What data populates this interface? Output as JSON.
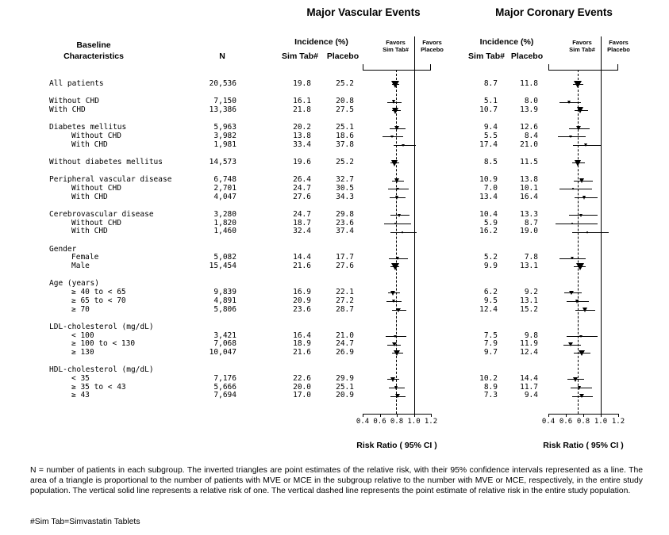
{
  "titles": {
    "left": "Major Vascular Events",
    "right": "Major Coronary Events"
  },
  "headers": {
    "baseline1": "Baseline",
    "baseline2": "Characteristics",
    "n": "N",
    "incidence": "Incidence (%)",
    "sim": "Sim Tab#",
    "placebo": "Placebo",
    "favors": "Favors",
    "favors_sim": "Sim Tab#",
    "favors_placebo": "Placebo"
  },
  "axis": {
    "ticks": [
      "0.4",
      "0.6",
      "0.8",
      "1.0",
      "1.2"
    ],
    "min": 0.4,
    "max": 1.2,
    "label": "Risk Ratio ( 95% CI )",
    "solid_line_at": 1.0,
    "dashed_mve": 0.79,
    "dashed_mce": 0.74
  },
  "footnotes": {
    "main": "N = number of patients in each subgroup. The inverted triangles are point estimates of the relative risk, with their 95% confidence intervals represented as a line. The area of a triangle is proportional to the number of patients with MVE or MCE in the subgroup relative to the number with MVE or MCE, respectively, in the entire study population. The vertical solid line represents a relative risk of one. The vertical dashed line represents the point estimate of relative risk in the entire study population.",
    "sim_tab": "#Sim Tab=Simvastatin Tablets"
  },
  "chart_data": {
    "type": "forest",
    "x_axis": {
      "label": "Risk Ratio ( 95% CI )",
      "range": [
        0.4,
        1.2
      ],
      "ticks": [
        0.4,
        0.6,
        0.8,
        1.0,
        1.2
      ]
    },
    "panels": [
      "Major Vascular Events",
      "Major Coronary Events"
    ],
    "row_legend": "t: d=data h=group-header s=spacer; ind=indent level; m1=MVE {s:Sim Tab incidence %, p:Placebo incidence %, rr:risk ratio point estimate, lo/hi:95% CI, w:triangle width px}; m2=MCE same fields",
    "rows": [
      {
        "t": "d",
        "label": "All patients",
        "ind": 0,
        "n": "20,536",
        "m1": {
          "s": "19.8",
          "p": "25.2",
          "rr": 0.79,
          "lo": 0.74,
          "hi": 0.83,
          "w": 11.0
        },
        "m2": {
          "s": "8.7",
          "p": "11.8",
          "rr": 0.74,
          "lo": 0.68,
          "hi": 0.8,
          "w": 11.0
        }
      },
      {
        "t": "s"
      },
      {
        "t": "d",
        "label": "Without CHD",
        "ind": 0,
        "n": "7,150",
        "m1": {
          "s": "16.1",
          "p": "20.8",
          "rr": 0.77,
          "lo": 0.69,
          "hi": 0.86,
          "w": 5.9
        },
        "m2": {
          "s": "5.1",
          "p": "8.0",
          "rr": 0.64,
          "lo": 0.53,
          "hi": 0.77,
          "w": 5.2
        }
      },
      {
        "t": "d",
        "label": "With CHD",
        "ind": 0,
        "n": "13,386",
        "m1": {
          "s": "21.8",
          "p": "27.5",
          "rr": 0.79,
          "lo": 0.74,
          "hi": 0.85,
          "w": 9.3
        },
        "m2": {
          "s": "10.7",
          "p": "13.9",
          "rr": 0.77,
          "lo": 0.7,
          "hi": 0.85,
          "w": 9.7
        }
      },
      {
        "t": "s"
      },
      {
        "t": "d",
        "label": "Diabetes mellitus",
        "ind": 0,
        "n": "5,963",
        "m1": {
          "s": "20.2",
          "p": "25.1",
          "rr": 0.8,
          "lo": 0.72,
          "hi": 0.9,
          "w": 6.0
        },
        "m2": {
          "s": "9.4",
          "p": "12.6",
          "rr": 0.75,
          "lo": 0.64,
          "hi": 0.87,
          "w": 6.1
        }
      },
      {
        "t": "d",
        "label": "Without CHD",
        "ind": 1,
        "n": "3,982",
        "m1": {
          "s": "13.8",
          "p": "18.6",
          "rr": 0.74,
          "lo": 0.63,
          "hi": 0.87,
          "w": 4.1
        },
        "m2": {
          "s": "5.5",
          "p": "8.4",
          "rr": 0.65,
          "lo": 0.51,
          "hi": 0.83,
          "w": 4.0
        }
      },
      {
        "t": "d",
        "label": "With CHD",
        "ind": 1,
        "n": "1,981",
        "m1": {
          "s": "33.4",
          "p": "37.8",
          "rr": 0.88,
          "lo": 0.76,
          "hi": 1.02,
          "w": 4.3
        },
        "m2": {
          "s": "17.4",
          "p": "21.0",
          "rr": 0.83,
          "lo": 0.68,
          "hi": 1.01,
          "w": 4.7
        }
      },
      {
        "t": "s"
      },
      {
        "t": "d",
        "label": "Without diabetes mellitus",
        "ind": 0,
        "n": "14,573",
        "m1": {
          "s": "19.6",
          "p": "25.2",
          "rr": 0.78,
          "lo": 0.73,
          "hi": 0.83,
          "w": 9.2
        },
        "m2": {
          "s": "8.5",
          "p": "11.5",
          "rr": 0.74,
          "lo": 0.67,
          "hi": 0.82,
          "w": 9.2
        }
      },
      {
        "t": "s"
      },
      {
        "t": "d",
        "label": "Peripheral vascular disease",
        "ind": 0,
        "n": "6,748",
        "m1": {
          "s": "26.4",
          "p": "32.7",
          "rr": 0.81,
          "lo": 0.74,
          "hi": 0.88,
          "w": 7.2
        },
        "m2": {
          "s": "10.9",
          "p": "13.8",
          "rr": 0.79,
          "lo": 0.69,
          "hi": 0.91,
          "w": 6.9
        }
      },
      {
        "t": "d",
        "label": "Without CHD",
        "ind": 1,
        "n": "2,701",
        "m1": {
          "s": "24.7",
          "p": "30.5",
          "rr": 0.81,
          "lo": 0.7,
          "hi": 0.94,
          "w": 4.4
        },
        "m2": {
          "s": "7.0",
          "p": "10.1",
          "rr": 0.69,
          "lo": 0.53,
          "hi": 0.9,
          "w": 3.6
        }
      },
      {
        "t": "d",
        "label": "With CHD",
        "ind": 1,
        "n": "4,047",
        "m1": {
          "s": "27.6",
          "p": "34.3",
          "rr": 0.81,
          "lo": 0.72,
          "hi": 0.9,
          "w": 5.7
        },
        "m2": {
          "s": "13.4",
          "p": "16.4",
          "rr": 0.82,
          "lo": 0.7,
          "hi": 0.96,
          "w": 5.9
        }
      },
      {
        "t": "s"
      },
      {
        "t": "d",
        "label": "Cerebrovascular disease",
        "ind": 0,
        "n": "3,280",
        "m1": {
          "s": "24.7",
          "p": "29.8",
          "rr": 0.83,
          "lo": 0.73,
          "hi": 0.95,
          "w": 4.8
        },
        "m2": {
          "s": "10.4",
          "p": "13.3",
          "rr": 0.78,
          "lo": 0.64,
          "hi": 0.96,
          "w": 4.7
        }
      },
      {
        "t": "d",
        "label": "Without CHD",
        "ind": 1,
        "n": "1,820",
        "m1": {
          "s": "18.7",
          "p": "23.6",
          "rr": 0.79,
          "lo": 0.65,
          "hi": 0.97,
          "w": 3.2
        },
        "m2": {
          "s": "5.9",
          "p": "8.7",
          "rr": 0.68,
          "lo": 0.48,
          "hi": 0.96,
          "w": 3.0
        }
      },
      {
        "t": "d",
        "label": "With CHD",
        "ind": 1,
        "n": "1,460",
        "m1": {
          "s": "32.4",
          "p": "37.4",
          "rr": 0.87,
          "lo": 0.73,
          "hi": 1.03,
          "w": 3.7
        },
        "m2": {
          "s": "16.2",
          "p": "19.0",
          "rr": 0.85,
          "lo": 0.67,
          "hi": 1.09,
          "w": 3.8
        }
      },
      {
        "t": "s"
      },
      {
        "t": "h",
        "label": "Gender",
        "ind": 0
      },
      {
        "t": "d",
        "label": "Female",
        "ind": 1,
        "n": "5,082",
        "m1": {
          "s": "14.4",
          "p": "17.7",
          "rr": 0.81,
          "lo": 0.71,
          "hi": 0.93,
          "w": 4.6
        },
        "m2": {
          "s": "5.2",
          "p": "7.8",
          "rr": 0.67,
          "lo": 0.53,
          "hi": 0.83,
          "w": 4.4
        }
      },
      {
        "t": "d",
        "label": "Male",
        "ind": 1,
        "n": "15,454",
        "m1": {
          "s": "21.6",
          "p": "27.6",
          "rr": 0.78,
          "lo": 0.73,
          "hi": 0.83,
          "w": 10.0
        },
        "m2": {
          "s": "9.9",
          "p": "13.1",
          "rr": 0.76,
          "lo": 0.69,
          "hi": 0.83,
          "w": 10.1
        }
      },
      {
        "t": "s"
      },
      {
        "t": "h",
        "label": "Age (years)",
        "ind": 0
      },
      {
        "t": "d",
        "label": "≥ 40 to < 65",
        "ind": 1,
        "n": "9,839",
        "m1": {
          "s": "16.9",
          "p": "22.1",
          "rr": 0.76,
          "lo": 0.7,
          "hi": 0.84,
          "w": 7.1
        },
        "m2": {
          "s": "6.2",
          "p": "9.2",
          "rr": 0.67,
          "lo": 0.58,
          "hi": 0.78,
          "w": 6.6
        }
      },
      {
        "t": "d",
        "label": "≥ 65 to < 70",
        "ind": 1,
        "n": "4,891",
        "m1": {
          "s": "20.9",
          "p": "27.2",
          "rr": 0.77,
          "lo": 0.68,
          "hi": 0.86,
          "w": 5.5
        },
        "m2": {
          "s": "9.5",
          "p": "13.1",
          "rr": 0.73,
          "lo": 0.61,
          "hi": 0.86,
          "w": 5.6
        }
      },
      {
        "t": "d",
        "label": "≥ 70",
        "ind": 1,
        "n": "5,806",
        "m1": {
          "s": "23.6",
          "p": "28.7",
          "rr": 0.82,
          "lo": 0.74,
          "hi": 0.91,
          "w": 6.3
        },
        "m2": {
          "s": "12.4",
          "p": "15.2",
          "rr": 0.82,
          "lo": 0.71,
          "hi": 0.94,
          "w": 6.8
        }
      },
      {
        "t": "s"
      },
      {
        "t": "h",
        "label": "LDL-cholesterol (mg/dL)",
        "ind": 0
      },
      {
        "t": "d",
        "label": "< 100",
        "ind": 1,
        "n": "3,421",
        "m1": {
          "s": "16.4",
          "p": "21.0",
          "rr": 0.78,
          "lo": 0.67,
          "hi": 0.91,
          "w": 4.1
        },
        "m2": {
          "s": "7.5",
          "p": "9.8",
          "rr": 0.77,
          "lo": 0.61,
          "hi": 0.96,
          "w": 4.1
        }
      },
      {
        "t": "d",
        "label": "≥ 100 to < 130",
        "ind": 1,
        "n": "7,068",
        "m1": {
          "s": "18.9",
          "p": "24.7",
          "rr": 0.77,
          "lo": 0.69,
          "hi": 0.85,
          "w": 6.4
        },
        "m2": {
          "s": "7.9",
          "p": "11.9",
          "rr": 0.66,
          "lo": 0.57,
          "hi": 0.77,
          "w": 6.3
        }
      },
      {
        "t": "d",
        "label": "≥ 130",
        "ind": 1,
        "n": "10,047",
        "m1": {
          "s": "21.6",
          "p": "26.9",
          "rr": 0.8,
          "lo": 0.74,
          "hi": 0.87,
          "w": 8.0
        },
        "m2": {
          "s": "9.7",
          "p": "12.4",
          "rr": 0.78,
          "lo": 0.69,
          "hi": 0.88,
          "w": 8.0
        }
      },
      {
        "t": "s"
      },
      {
        "t": "h",
        "label": "HDL-cholesterol (mg/dL)",
        "ind": 0
      },
      {
        "t": "d",
        "label": "< 35",
        "ind": 1,
        "n": "7,176",
        "m1": {
          "s": "22.6",
          "p": "29.9",
          "rr": 0.76,
          "lo": 0.69,
          "hi": 0.83,
          "w": 7.0
        },
        "m2": {
          "s": "10.2",
          "p": "14.4",
          "rr": 0.71,
          "lo": 0.62,
          "hi": 0.81,
          "w": 7.1
        }
      },
      {
        "t": "d",
        "label": "≥ 35 to < 43",
        "ind": 1,
        "n": "5,666",
        "m1": {
          "s": "20.0",
          "p": "25.1",
          "rr": 0.8,
          "lo": 0.71,
          "hi": 0.89,
          "w": 5.8
        },
        "m2": {
          "s": "8.9",
          "p": "11.7",
          "rr": 0.76,
          "lo": 0.65,
          "hi": 0.9,
          "w": 5.8
        }
      },
      {
        "t": "d",
        "label": "≥ 43",
        "ind": 1,
        "n": "7,694",
        "m1": {
          "s": "17.0",
          "p": "20.9",
          "rr": 0.81,
          "lo": 0.73,
          "hi": 0.9,
          "w": 6.2
        },
        "m2": {
          "s": "7.3",
          "p": "9.4",
          "rr": 0.78,
          "lo": 0.67,
          "hi": 0.91,
          "w": 6.1
        }
      }
    ]
  }
}
